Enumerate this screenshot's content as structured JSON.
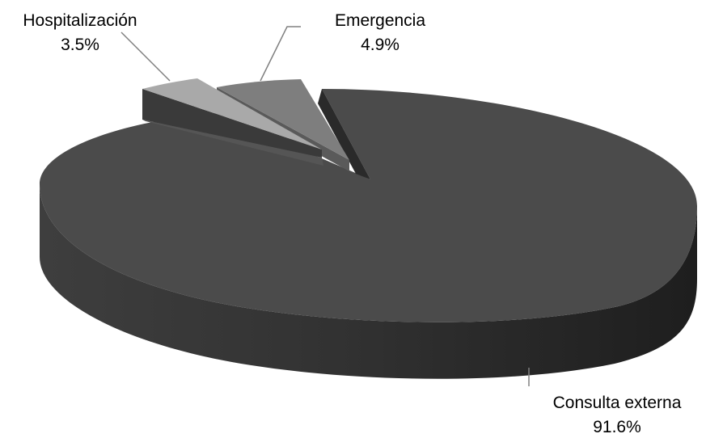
{
  "chart_data": {
    "type": "pie",
    "style": "3d-exploded",
    "slices": [
      {
        "name": "Consulta externa",
        "value": 91.6,
        "label": "91.6%",
        "color": "#4b4b4b"
      },
      {
        "name": "Emergencia",
        "value": 4.9,
        "label": "4.9%",
        "color": "#7e7e7e"
      },
      {
        "name": "Hospitalización",
        "value": 3.5,
        "label": "3.5%",
        "color": "#a9a9a9"
      }
    ],
    "legend": "none",
    "data_labels": "outside with leader lines"
  }
}
